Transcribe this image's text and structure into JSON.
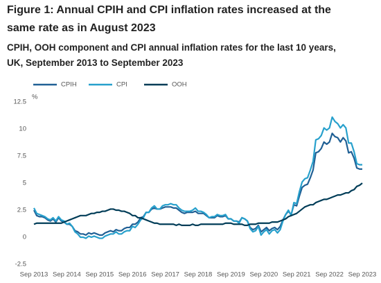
{
  "chart_data": {
    "type": "line",
    "title": "Figure 1: Annual CPIH and CPI inflation rates increased at the same rate as in August 2023",
    "subtitle": "CPIH, OOH component and CPI annual inflation rates for the last 10 years, UK, September 2013 to September 2023",
    "y_label": "%",
    "categories": [
      "Sep 2013",
      null,
      null,
      null,
      null,
      null,
      null,
      null,
      null,
      null,
      null,
      null,
      "Sep 2014",
      null,
      null,
      null,
      null,
      null,
      null,
      null,
      null,
      null,
      null,
      null,
      "Sep 2015",
      null,
      null,
      null,
      null,
      null,
      null,
      null,
      null,
      null,
      null,
      null,
      "Sep 2016",
      null,
      null,
      null,
      null,
      null,
      null,
      null,
      null,
      null,
      null,
      null,
      "Sep 2017",
      null,
      null,
      null,
      null,
      null,
      null,
      null,
      null,
      null,
      null,
      null,
      "Sep 2018",
      null,
      null,
      null,
      null,
      null,
      null,
      null,
      null,
      null,
      null,
      null,
      "Sep 2019",
      null,
      null,
      null,
      null,
      null,
      null,
      null,
      null,
      null,
      null,
      null,
      "Sep 2020",
      null,
      null,
      null,
      null,
      null,
      null,
      null,
      null,
      null,
      null,
      null,
      "Sep 2021",
      null,
      null,
      null,
      null,
      null,
      null,
      null,
      null,
      null,
      null,
      null,
      "Sep 2022",
      null,
      null,
      null,
      null,
      null,
      null,
      null,
      null,
      null,
      null,
      null,
      "Sep 2023"
    ],
    "series": [
      {
        "name": "CPIH",
        "color": "#206095",
        "values": [
          2.5,
          2.0,
          1.9,
          1.9,
          1.8,
          1.6,
          1.5,
          1.7,
          1.4,
          1.8,
          1.5,
          1.4,
          1.2,
          1.2,
          1.0,
          0.6,
          0.5,
          0.3,
          0.3,
          0.2,
          0.4,
          0.3,
          0.4,
          0.3,
          0.2,
          0.2,
          0.4,
          0.5,
          0.6,
          0.5,
          0.7,
          0.6,
          0.6,
          0.8,
          0.9,
          0.9,
          1.2,
          1.2,
          1.4,
          1.8,
          1.9,
          2.3,
          2.3,
          2.6,
          2.7,
          2.6,
          2.6,
          2.7,
          2.8,
          2.8,
          2.8,
          2.7,
          2.7,
          2.5,
          2.3,
          2.2,
          2.3,
          2.3,
          2.3,
          2.4,
          2.2,
          2.2,
          2.2,
          2.0,
          1.8,
          1.8,
          1.8,
          2.0,
          1.9,
          1.9,
          2.0,
          1.7,
          1.7,
          1.5,
          1.5,
          1.4,
          1.8,
          1.7,
          1.5,
          0.9,
          0.7,
          0.8,
          1.1,
          0.5,
          0.7,
          0.9,
          0.6,
          0.8,
          0.9,
          0.7,
          1.0,
          1.6,
          2.1,
          2.4,
          2.1,
          3.0,
          2.9,
          3.8,
          4.6,
          4.8,
          4.9,
          5.5,
          6.2,
          7.8,
          7.9,
          8.2,
          8.8,
          8.6,
          8.8,
          9.6,
          9.3,
          9.2,
          8.8,
          9.2,
          8.9,
          7.8,
          7.9,
          7.3,
          6.4,
          6.3,
          6.3
        ]
      },
      {
        "name": "CPI",
        "color": "#27a0cc",
        "values": [
          2.7,
          2.2,
          2.1,
          2.0,
          1.9,
          1.7,
          1.6,
          1.8,
          1.5,
          1.9,
          1.6,
          1.5,
          1.2,
          1.3,
          1.0,
          0.5,
          0.3,
          0.0,
          0.0,
          -0.1,
          0.1,
          0.0,
          0.1,
          0.0,
          -0.1,
          -0.1,
          0.1,
          0.2,
          0.3,
          0.3,
          0.5,
          0.3,
          0.3,
          0.5,
          0.6,
          0.6,
          1.0,
          0.9,
          1.2,
          1.6,
          1.8,
          2.3,
          2.3,
          2.7,
          2.9,
          2.6,
          2.6,
          2.9,
          3.0,
          3.0,
          3.1,
          3.0,
          3.0,
          2.7,
          2.5,
          2.4,
          2.4,
          2.4,
          2.5,
          2.7,
          2.4,
          2.4,
          2.3,
          2.1,
          1.8,
          1.9,
          1.9,
          2.1,
          2.0,
          2.0,
          2.1,
          1.7,
          1.7,
          1.5,
          1.5,
          1.3,
          1.8,
          1.7,
          1.5,
          0.8,
          0.5,
          0.6,
          1.0,
          0.2,
          0.5,
          0.7,
          0.3,
          0.6,
          0.7,
          0.4,
          0.7,
          1.5,
          2.1,
          2.5,
          2.0,
          3.2,
          3.1,
          4.2,
          5.1,
          5.4,
          5.5,
          6.2,
          7.0,
          9.0,
          9.1,
          9.4,
          10.1,
          9.9,
          10.1,
          11.1,
          10.7,
          10.5,
          10.1,
          10.4,
          10.1,
          8.7,
          8.7,
          7.9,
          6.8,
          6.7,
          6.7
        ]
      },
      {
        "name": "OOH",
        "color": "#003c57",
        "values": [
          1.2,
          1.3,
          1.3,
          1.3,
          1.3,
          1.3,
          1.3,
          1.3,
          1.3,
          1.3,
          1.3,
          1.4,
          1.5,
          1.6,
          1.7,
          1.8,
          1.9,
          2.0,
          2.0,
          2.0,
          2.1,
          2.2,
          2.2,
          2.3,
          2.3,
          2.4,
          2.4,
          2.5,
          2.6,
          2.6,
          2.5,
          2.5,
          2.4,
          2.4,
          2.3,
          2.2,
          2.0,
          2.0,
          1.8,
          1.8,
          1.7,
          1.6,
          1.5,
          1.4,
          1.3,
          1.3,
          1.2,
          1.2,
          1.2,
          1.2,
          1.2,
          1.2,
          1.1,
          1.2,
          1.1,
          1.1,
          1.1,
          1.1,
          1.2,
          1.1,
          1.1,
          1.2,
          1.2,
          1.2,
          1.2,
          1.2,
          1.2,
          1.2,
          1.2,
          1.2,
          1.3,
          1.3,
          1.3,
          1.2,
          1.2,
          1.2,
          1.2,
          1.1,
          1.1,
          1.2,
          1.2,
          1.2,
          1.3,
          1.3,
          1.3,
          1.3,
          1.3,
          1.4,
          1.4,
          1.4,
          1.5,
          1.6,
          1.7,
          1.9,
          2.0,
          2.1,
          2.2,
          2.4,
          2.6,
          2.8,
          2.9,
          3.0,
          3.0,
          3.2,
          3.3,
          3.4,
          3.5,
          3.5,
          3.6,
          3.7,
          3.8,
          3.9,
          3.9,
          4.0,
          4.1,
          4.1,
          4.3,
          4.4,
          4.7,
          4.8,
          5.0
        ]
      }
    ],
    "ylim": [
      -2.5,
      12.5
    ],
    "yticks": [
      -2.5,
      0,
      2.5,
      5,
      7.5,
      10,
      12.5
    ],
    "grid": false,
    "legend": "top"
  }
}
